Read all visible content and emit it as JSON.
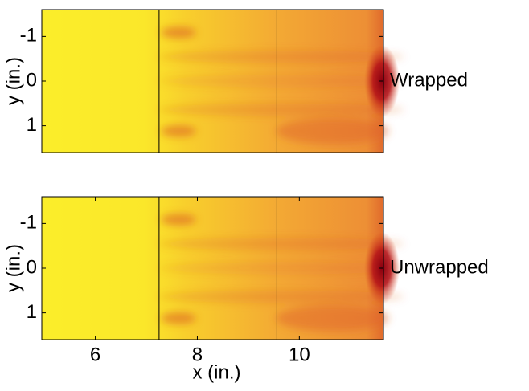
{
  "chart_data": [
    {
      "type": "heatmap",
      "label": "Wrapped",
      "ylabel": "y (in.)",
      "xlim": [
        4.95,
        11.65
      ],
      "ylim": [
        -1.6,
        1.6
      ],
      "yticks": [
        -1,
        0,
        1
      ],
      "y_reversed": true,
      "vlines": [
        7.25,
        9.56
      ]
    },
    {
      "type": "heatmap",
      "label": "Unwrapped",
      "ylabel": "y (in.)",
      "xlabel": "x (in.)",
      "xlim": [
        4.95,
        11.65
      ],
      "ylim": [
        -1.6,
        1.6
      ],
      "yticks": [
        -1,
        0,
        1
      ],
      "xticks": [
        6,
        8,
        10
      ],
      "y_reversed": true,
      "vlines": [
        7.25,
        9.56
      ]
    }
  ]
}
